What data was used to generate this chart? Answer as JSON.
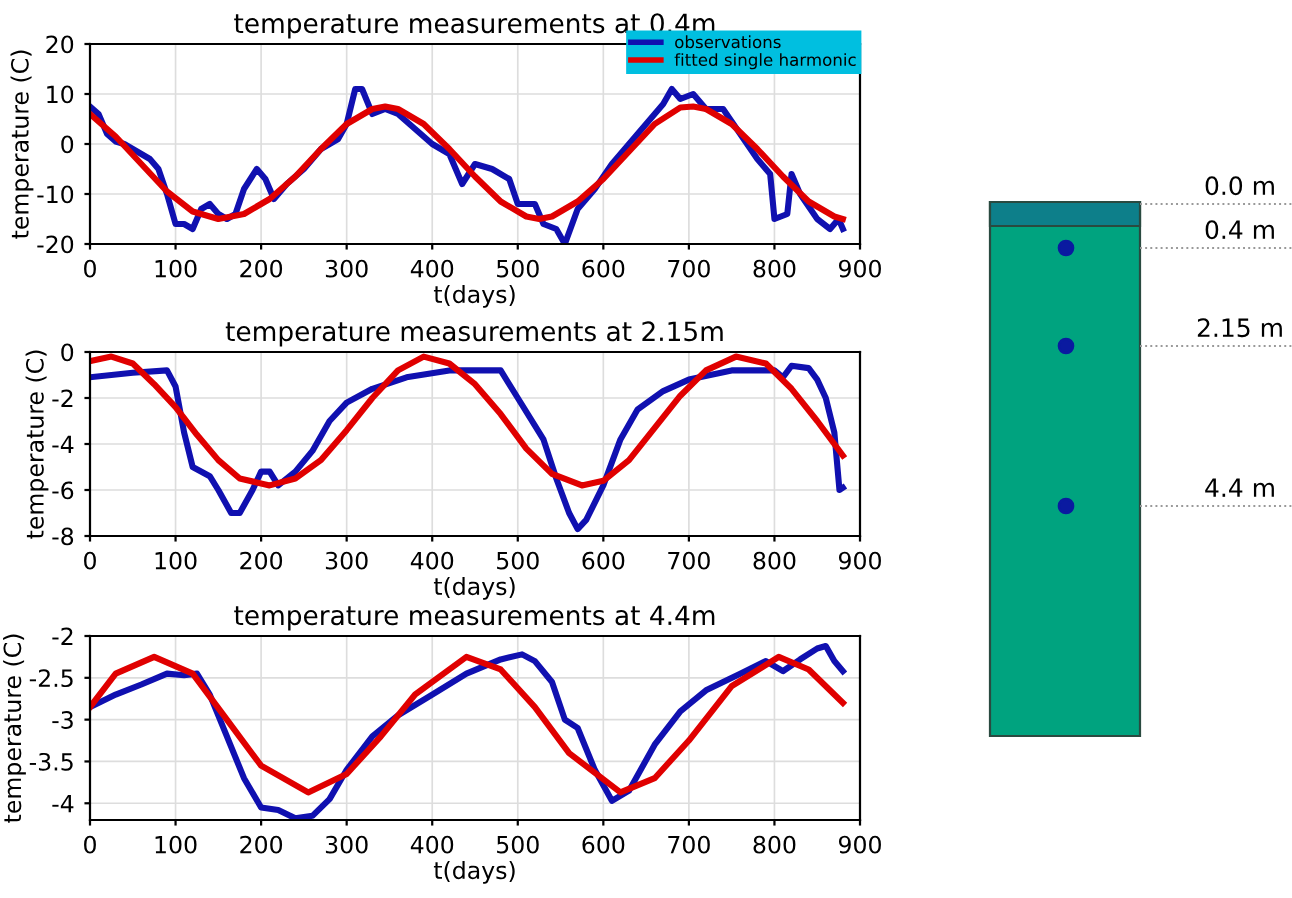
{
  "chart_data": [
    {
      "type": "line",
      "title": "temperature measurements at 0.4m",
      "xlabel": "t(days)",
      "ylabel": "temperature (C)",
      "xlim": [
        0,
        900
      ],
      "xticks": [
        0,
        100,
        200,
        300,
        400,
        500,
        600,
        700,
        800,
        900
      ],
      "ylim": [
        -20,
        20
      ],
      "yticks": [
        -20,
        -10,
        0,
        10,
        20
      ],
      "grid": true,
      "legend": "top right",
      "series": [
        {
          "name": "observations",
          "color": "#1010b0",
          "x": [
            0,
            10,
            20,
            30,
            40,
            50,
            60,
            70,
            80,
            90,
            100,
            110,
            120,
            130,
            140,
            150,
            160,
            170,
            180,
            195,
            205,
            215,
            230,
            250,
            270,
            290,
            300,
            310,
            318,
            330,
            345,
            360,
            380,
            400,
            420,
            435,
            450,
            470,
            490,
            500,
            520,
            530,
            545,
            555,
            570,
            590,
            610,
            630,
            650,
            670,
            680,
            690,
            705,
            720,
            740,
            760,
            780,
            795,
            800,
            815,
            820,
            830,
            850,
            865,
            875,
            880
          ],
          "values": [
            7.5,
            6,
            2,
            0.5,
            0,
            -1,
            -2,
            -3,
            -5,
            -10,
            -16,
            -16,
            -17,
            -13,
            -12,
            -14,
            -15,
            -14,
            -9,
            -5,
            -7,
            -11,
            -8,
            -5,
            -1,
            1,
            4,
            11,
            11,
            6,
            7,
            6,
            3,
            0,
            -2,
            -8,
            -4,
            -5,
            -7,
            -12,
            -12,
            -16,
            -17,
            -20,
            -13,
            -9,
            -4,
            0,
            4,
            8,
            11,
            9,
            10,
            7,
            7,
            2,
            -3,
            -6,
            -15,
            -14,
            -6,
            -10,
            -15,
            -17,
            -15,
            -17
          ]
        },
        {
          "name": "fitted single harmonic",
          "color": "#e00000",
          "x": [
            0,
            30,
            60,
            90,
            120,
            150,
            180,
            210,
            240,
            270,
            300,
            330,
            345,
            360,
            390,
            420,
            450,
            480,
            510,
            525,
            540,
            570,
            600,
            630,
            660,
            690,
            705,
            720,
            750,
            780,
            810,
            840,
            870,
            880
          ],
          "values": [
            6,
            1.5,
            -4,
            -9.5,
            -13.5,
            -15,
            -14,
            -11,
            -6.5,
            -1,
            4,
            7,
            7.5,
            7,
            4,
            -1,
            -6.5,
            -11.5,
            -14.5,
            -15,
            -14.5,
            -11.5,
            -7,
            -1.5,
            4,
            7.3,
            7.5,
            7,
            4,
            -1,
            -6.5,
            -11.5,
            -14.5,
            -15
          ]
        }
      ]
    },
    {
      "type": "line",
      "title": "temperature measurements at 2.15m",
      "xlabel": "t(days)",
      "ylabel": "temperature (C)",
      "xlim": [
        0,
        900
      ],
      "xticks": [
        0,
        100,
        200,
        300,
        400,
        500,
        600,
        700,
        800,
        900
      ],
      "ylim": [
        -8,
        0
      ],
      "yticks": [
        -8,
        -6,
        -4,
        -2,
        0
      ],
      "grid": true,
      "series": [
        {
          "color": "#1010b0",
          "x": [
            0,
            50,
            90,
            100,
            110,
            120,
            140,
            150,
            165,
            175,
            190,
            200,
            210,
            220,
            240,
            260,
            280,
            300,
            330,
            370,
            420,
            470,
            480,
            500,
            530,
            545,
            560,
            570,
            580,
            600,
            620,
            640,
            670,
            700,
            750,
            800,
            810,
            820,
            840,
            850,
            860,
            870,
            876,
            880
          ],
          "values": [
            -1.1,
            -0.9,
            -0.8,
            -1.5,
            -3.5,
            -5,
            -5.4,
            -6,
            -7,
            -7,
            -6,
            -5.2,
            -5.2,
            -5.8,
            -5.2,
            -4.3,
            -3,
            -2.2,
            -1.6,
            -1.1,
            -0.8,
            -0.8,
            -0.8,
            -2,
            -3.8,
            -5.5,
            -7,
            -7.7,
            -7.3,
            -5.8,
            -3.8,
            -2.5,
            -1.7,
            -1.2,
            -0.8,
            -0.8,
            -1.1,
            -0.6,
            -0.7,
            -1.2,
            -2,
            -3.5,
            -6,
            -5.9
          ]
        },
        {
          "color": "#e00000",
          "x": [
            0,
            25,
            50,
            75,
            100,
            125,
            150,
            175,
            210,
            240,
            270,
            300,
            330,
            360,
            390,
            420,
            450,
            480,
            510,
            540,
            575,
            600,
            630,
            660,
            690,
            720,
            755,
            790,
            820,
            850,
            880
          ],
          "values": [
            -0.4,
            -0.2,
            -0.5,
            -1.4,
            -2.4,
            -3.6,
            -4.7,
            -5.5,
            -5.8,
            -5.5,
            -4.7,
            -3.4,
            -2,
            -0.8,
            -0.2,
            -0.5,
            -1.4,
            -2.7,
            -4.2,
            -5.3,
            -5.8,
            -5.6,
            -4.7,
            -3.3,
            -1.9,
            -0.8,
            -0.2,
            -0.5,
            -1.6,
            -3,
            -4.5
          ]
        }
      ]
    },
    {
      "type": "line",
      "title": "temperature measurements at 4.4m",
      "xlabel": "t(days)",
      "ylabel": "temperature (C)",
      "xlim": [
        0,
        900
      ],
      "xticks": [
        0,
        100,
        200,
        300,
        400,
        500,
        600,
        700,
        800,
        900
      ],
      "ylim": [
        -4.2,
        -2
      ],
      "yticks": [
        -4,
        -3.5,
        -3,
        -2.5,
        -2
      ],
      "grid": true,
      "series": [
        {
          "color": "#1010b0",
          "x": [
            0,
            30,
            60,
            90,
            110,
            125,
            140,
            160,
            180,
            200,
            220,
            240,
            260,
            280,
            300,
            330,
            360,
            400,
            440,
            480,
            505,
            520,
            540,
            555,
            570,
            590,
            610,
            630,
            660,
            690,
            720,
            760,
            790,
            810,
            830,
            850,
            860,
            870,
            880
          ],
          "values": [
            -2.85,
            -2.7,
            -2.58,
            -2.45,
            -2.47,
            -2.45,
            -2.7,
            -3.2,
            -3.7,
            -4.05,
            -4.08,
            -4.18,
            -4.15,
            -3.95,
            -3.6,
            -3.2,
            -2.95,
            -2.7,
            -2.45,
            -2.28,
            -2.22,
            -2.3,
            -2.55,
            -3.0,
            -3.1,
            -3.6,
            -3.97,
            -3.85,
            -3.3,
            -2.9,
            -2.65,
            -2.45,
            -2.3,
            -2.42,
            -2.28,
            -2.15,
            -2.12,
            -2.3,
            -2.42
          ]
        },
        {
          "color": "#e00000",
          "x": [
            0,
            30,
            75,
            120,
            160,
            200,
            255,
            300,
            340,
            380,
            440,
            480,
            520,
            560,
            620,
            660,
            700,
            750,
            805,
            840,
            880
          ],
          "values": [
            -2.85,
            -2.45,
            -2.25,
            -2.45,
            -3.0,
            -3.55,
            -3.87,
            -3.65,
            -3.2,
            -2.7,
            -2.25,
            -2.4,
            -2.85,
            -3.4,
            -3.87,
            -3.7,
            -3.25,
            -2.6,
            -2.25,
            -2.4,
            -2.8
          ]
        }
      ]
    },
    {
      "type": "other",
      "annotations": [
        "0.0 m",
        "0.4 m",
        "2.15 m",
        "4.4 m"
      ]
    }
  ]
}
